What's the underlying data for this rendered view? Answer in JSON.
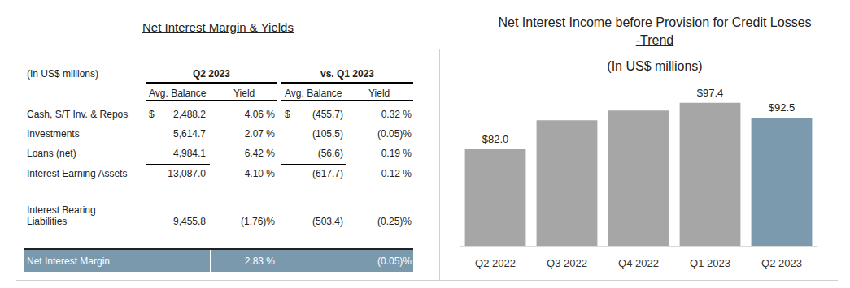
{
  "table": {
    "title": "Net Interest Margin & Yields",
    "units": "(In US$ millions)",
    "period": "Q2 2023",
    "comparison": "vs. Q1 2023",
    "columns": [
      "Avg. Balance",
      "Yield",
      "Avg. Balance",
      "Yield"
    ],
    "rows": [
      {
        "label": "Cash, S/T Inv. & Repos",
        "currency": "$",
        "avg_balance": "2,488.2",
        "yield": "4.06 %",
        "change_avg_balance": "(455.7)",
        "change_yield": "0.32 %"
      },
      {
        "label": "Investments",
        "avg_balance": "5,614.7",
        "yield": "2.07 %",
        "change_avg_balance": "(105.5)",
        "change_yield": "(0.05)%"
      },
      {
        "label": "Loans (net)",
        "avg_balance": "4,984.1",
        "yield": "6.42 %",
        "change_avg_balance": "(56.6)",
        "change_yield": "0.19 %"
      },
      {
        "label": "Interest Earning Assets",
        "avg_balance": "13,087.0",
        "yield": "4.10 %",
        "change_avg_balance": "(617.7)",
        "change_yield": "0.12 %"
      },
      {
        "label": "Interest Bearing Liabilities",
        "avg_balance": "9,455.8",
        "yield": "(1.76)%",
        "change_avg_balance": "(503.4)",
        "change_yield": "(0.25)%"
      }
    ],
    "margin_row": {
      "label": "Net Interest Margin",
      "yield": "2.83 %",
      "change_yield": "(0.05)%"
    }
  },
  "chart_data": {
    "type": "bar",
    "title": "Net Interest Income before Provision for Credit Losses -Trend",
    "subtitle": "(In US$ millions)",
    "categories": [
      "Q2 2022",
      "Q3 2022",
      "Q4 2022",
      "Q1 2023",
      "Q2 2023"
    ],
    "values": [
      82.0,
      91.6,
      94.8,
      97.4,
      92.5
    ],
    "value_labels": [
      "$82.0",
      null,
      null,
      "$97.4",
      "$92.5"
    ],
    "colors": [
      "#a6a6a6",
      "#a6a6a6",
      "#a6a6a6",
      "#a6a6a6",
      "#7b9aae"
    ],
    "ylim": [
      50,
      100
    ],
    "yticks": [
      50,
      100
    ],
    "grid": false,
    "data_labels": true,
    "tick_labels": "x"
  }
}
